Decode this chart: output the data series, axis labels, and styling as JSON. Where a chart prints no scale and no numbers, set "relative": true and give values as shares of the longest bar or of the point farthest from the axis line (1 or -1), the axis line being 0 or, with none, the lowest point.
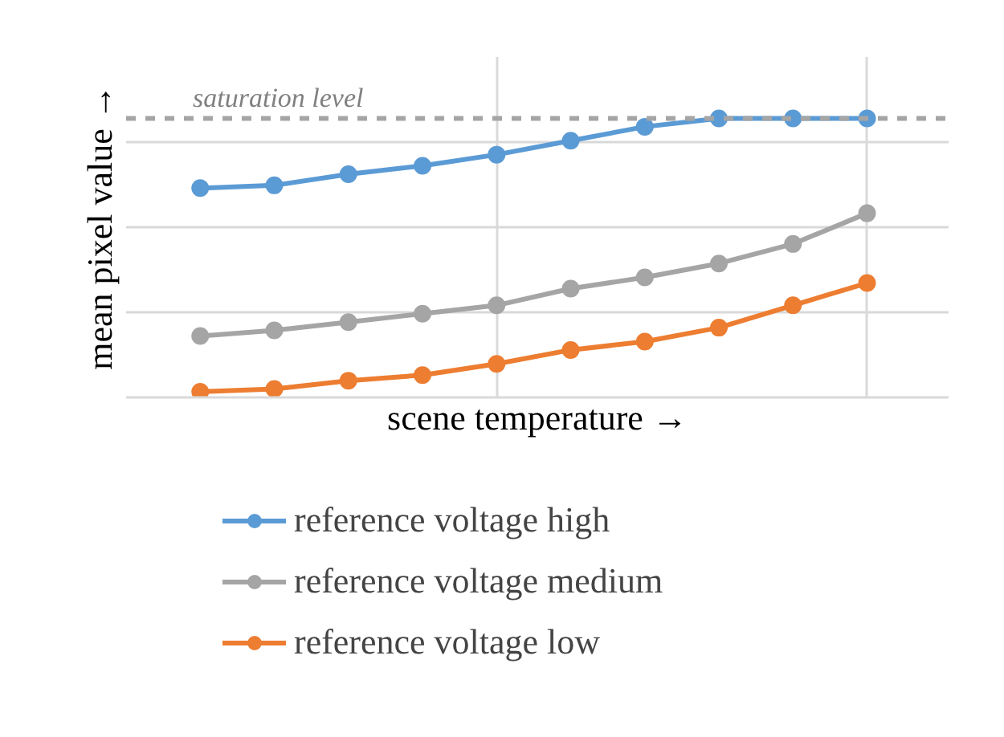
{
  "chart_data": {
    "type": "line",
    "relative": true,
    "xlabel": "scene temperature →",
    "ylabel": "mean pixel value →",
    "categories": [
      null,
      null,
      null,
      null,
      null,
      null,
      null,
      null,
      null,
      null
    ],
    "series": [
      {
        "name": "reference voltage high",
        "color": "#5b9bd5",
        "values": [
          0.75,
          0.76,
          0.8,
          0.83,
          0.87,
          0.92,
          0.97,
          1,
          1,
          1
        ]
      },
      {
        "name": "reference voltage medium",
        "color": "#a5a5a5",
        "values": [
          0.22,
          0.24,
          0.27,
          0.3,
          0.33,
          0.39,
          0.43,
          0.48,
          0.55,
          0.66
        ]
      },
      {
        "name": "reference voltage low",
        "color": "#ed7d31",
        "values": [
          0.02,
          0.03,
          0.06,
          0.08,
          0.12,
          0.17,
          0.2,
          0.25,
          0.33,
          0.41
        ]
      }
    ],
    "ref_lines": [
      {
        "axis": "y",
        "value": 1,
        "label": "saturation level",
        "color": "#a5a5a5",
        "line_style": "dashed"
      }
    ],
    "grid": true,
    "legend": "bottom",
    "marker": "circle",
    "line_style": "solid"
  }
}
